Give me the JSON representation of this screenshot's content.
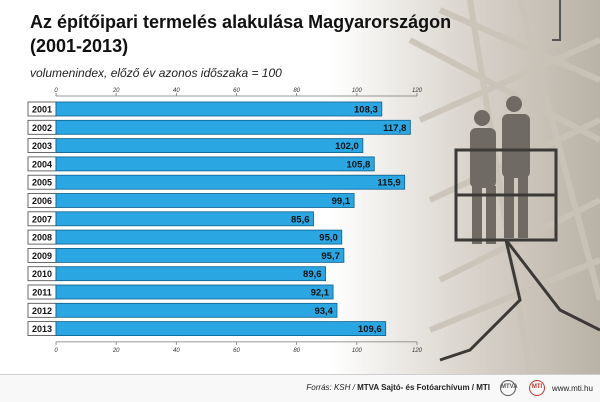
{
  "header": {
    "title_line1": "Az építőipari termelés alakulása Magyarországon",
    "title_line2": "(2001-2013)",
    "subtitle": "volumenindex, előző év azonos időszaka = 100"
  },
  "chart_data": {
    "type": "bar",
    "orientation": "horizontal",
    "categories": [
      "2001",
      "2002",
      "2003",
      "2004",
      "2005",
      "2006",
      "2007",
      "2008",
      "2009",
      "2010",
      "2011",
      "2012",
      "2013"
    ],
    "values": [
      108.3,
      117.8,
      102.0,
      105.8,
      115.9,
      99.1,
      85.6,
      95.0,
      95.7,
      89.6,
      92.1,
      93.4,
      109.6
    ],
    "value_labels": [
      "108,3",
      "117,8",
      "102,0",
      "105,8",
      "115,9",
      "99,1",
      "85,6",
      "95,0",
      "95,7",
      "89,6",
      "92,1",
      "93,4",
      "109,6"
    ],
    "xlim": [
      0,
      120
    ],
    "xticks": [
      0,
      20,
      40,
      60,
      80,
      100,
      120
    ],
    "grid": false,
    "colors": {
      "bar": "#2aa7e3",
      "bar_border": "#0d5f8c",
      "category_box": "#ffffff",
      "text": "#111111"
    }
  },
  "footer": {
    "source_prefix": "Forrás: KSH / ",
    "source_agency": "MTVA Sajtó- és Fotóarchívum / MTI",
    "source_suffix": "",
    "logo_left": "MTVA",
    "logo_right": "MTI",
    "website": "www.mti.hu"
  }
}
